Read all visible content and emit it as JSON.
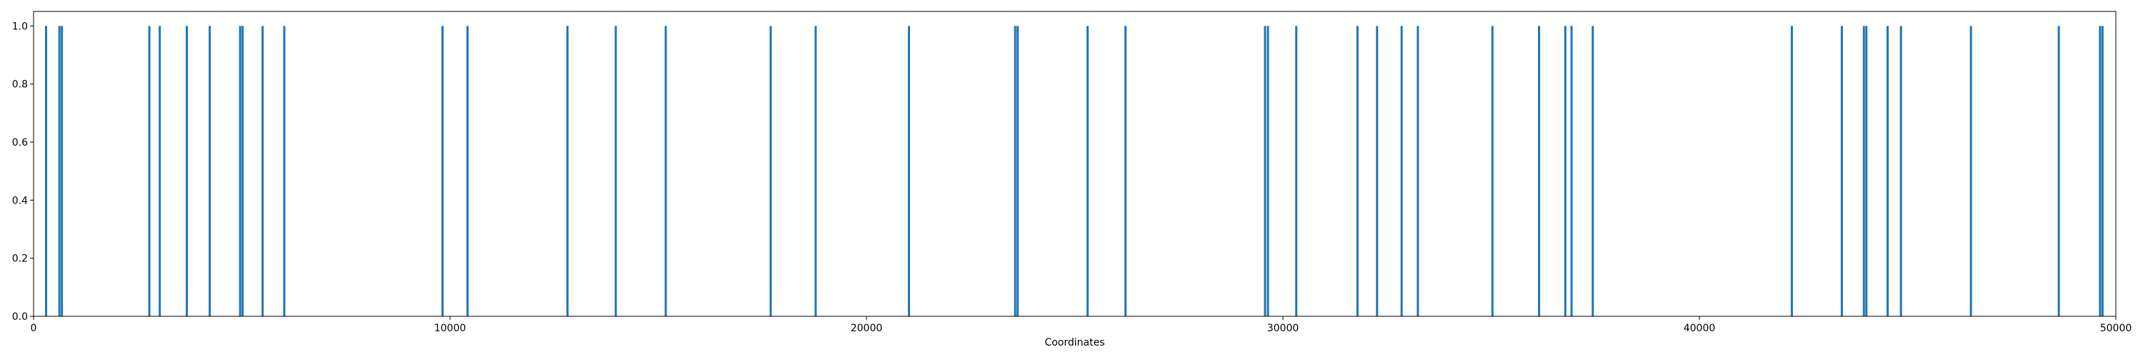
{
  "chart_data": {
    "type": "bar",
    "title": "",
    "xlabel": "Coordinates",
    "ylabel": "",
    "xlim": [
      0,
      50000
    ],
    "ylim": [
      0,
      1.05
    ],
    "grid": false,
    "color": "#1f77b4",
    "x_ticks": [
      {
        "value": 0,
        "label": "0"
      },
      {
        "value": 10000,
        "label": "10000"
      },
      {
        "value": 20000,
        "label": "20000"
      },
      {
        "value": 30000,
        "label": "30000"
      },
      {
        "value": 40000,
        "label": "40000"
      },
      {
        "value": 50000,
        "label": "50000"
      }
    ],
    "y_ticks": [
      {
        "value": 0.0,
        "label": "0.0"
      },
      {
        "value": 0.2,
        "label": "0.2"
      },
      {
        "value": 0.4,
        "label": "0.4"
      },
      {
        "value": 0.6,
        "label": "0.6"
      },
      {
        "value": 0.8,
        "label": "0.8"
      },
      {
        "value": 1.0,
        "label": "1.0"
      }
    ],
    "x": [
      300,
      620,
      680,
      2780,
      3030,
      3680,
      4230,
      4960,
      5020,
      5500,
      6020,
      9820,
      10420,
      12820,
      13980,
      15180,
      17700,
      18780,
      21020,
      23570,
      23630,
      25310,
      26220,
      29570,
      29640,
      30320,
      31790,
      32260,
      32850,
      33240,
      35030,
      36150,
      36780,
      36930,
      37440,
      42220,
      43420,
      43950,
      44010,
      44520,
      44840,
      46520,
      48630,
      49620,
      49680
    ],
    "values": [
      1,
      1,
      1,
      1,
      1,
      1,
      1,
      1,
      1,
      1,
      1,
      1,
      1,
      1,
      1,
      1,
      1,
      1,
      1,
      1,
      1,
      1,
      1,
      1,
      1,
      1,
      1,
      1,
      1,
      1,
      1,
      1,
      1,
      1,
      1,
      1,
      1,
      1,
      1,
      1,
      1,
      1,
      1,
      1,
      1
    ]
  }
}
